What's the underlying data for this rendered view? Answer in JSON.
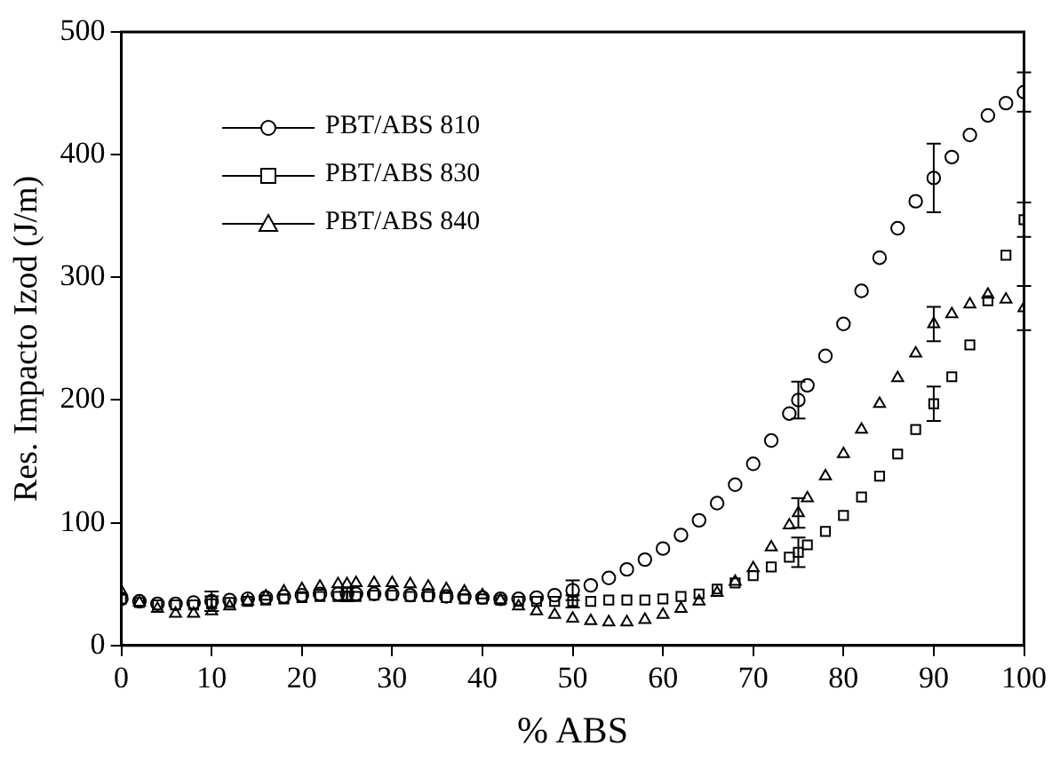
{
  "chart_data": {
    "type": "scatter",
    "xlabel": "% ABS",
    "ylabel": "Res. Impacto Izod (J/m)",
    "xlim": [
      0,
      100
    ],
    "ylim": [
      0,
      500
    ],
    "xticks": [
      0,
      10,
      20,
      30,
      40,
      50,
      60,
      70,
      80,
      90,
      100
    ],
    "yticks": [
      0,
      100,
      200,
      300,
      400,
      500
    ],
    "grid": false,
    "legend": "top left",
    "x": [
      0,
      2,
      4,
      6,
      8,
      10,
      12,
      14,
      16,
      18,
      20,
      22,
      24,
      25,
      26,
      28,
      30,
      32,
      34,
      36,
      38,
      40,
      42,
      44,
      46,
      48,
      50,
      52,
      54,
      56,
      58,
      60,
      62,
      64,
      66,
      68,
      70,
      72,
      74,
      75,
      76,
      78,
      80,
      82,
      84,
      86,
      88,
      90,
      92,
      94,
      96,
      98,
      100
    ],
    "series": [
      {
        "name": "PBT/ABS 810",
        "color": "#000000",
        "marker": "circle",
        "values": [
          38,
          36,
          34,
          34,
          35,
          36,
          37,
          38,
          39,
          40,
          41,
          42,
          42,
          42,
          42,
          42,
          42,
          41,
          41,
          40,
          40,
          39,
          38,
          38,
          39,
          41,
          45,
          49,
          55,
          62,
          70,
          79,
          90,
          102,
          116,
          131,
          148,
          167,
          189,
          200,
          212,
          236,
          262,
          289,
          316,
          340,
          362,
          381,
          398,
          416,
          432,
          442,
          451
        ],
        "errors": [
          null,
          null,
          null,
          null,
          null,
          8,
          null,
          null,
          null,
          null,
          null,
          null,
          null,
          5,
          null,
          null,
          null,
          null,
          null,
          null,
          null,
          null,
          null,
          null,
          null,
          null,
          8,
          null,
          null,
          null,
          null,
          null,
          null,
          null,
          null,
          null,
          null,
          null,
          null,
          15,
          null,
          null,
          null,
          null,
          null,
          null,
          null,
          28,
          null,
          null,
          null,
          null,
          16
        ]
      },
      {
        "name": "PBT/ABS 830",
        "color": "#000000",
        "marker": "square",
        "values": [
          38,
          35,
          33,
          33,
          33,
          34,
          35,
          36,
          37,
          38,
          39,
          40,
          40,
          40,
          40,
          41,
          41,
          40,
          40,
          39,
          38,
          38,
          37,
          36,
          36,
          36,
          36,
          36,
          37,
          37,
          37,
          38,
          40,
          42,
          46,
          51,
          57,
          64,
          72,
          76,
          82,
          93,
          106,
          121,
          138,
          156,
          176,
          197,
          219,
          245,
          281,
          318,
          347
        ],
        "errors": [
          null,
          null,
          null,
          null,
          null,
          6,
          null,
          null,
          null,
          null,
          null,
          null,
          null,
          4,
          null,
          null,
          null,
          null,
          null,
          null,
          null,
          null,
          null,
          null,
          null,
          null,
          5,
          null,
          null,
          null,
          null,
          null,
          null,
          null,
          null,
          null,
          null,
          null,
          null,
          12,
          null,
          null,
          null,
          null,
          null,
          null,
          null,
          14,
          null,
          null,
          null,
          null,
          14
        ]
      },
      {
        "name": "PBT/ABS 840",
        "color": "#000000",
        "marker": "triangle",
        "values": [
          44,
          35,
          30,
          26,
          26,
          28,
          32,
          36,
          40,
          44,
          46,
          48,
          50,
          50,
          51,
          51,
          51,
          50,
          48,
          46,
          44,
          41,
          37,
          32,
          28,
          25,
          22,
          20,
          19,
          19,
          21,
          25,
          30,
          36,
          43,
          52,
          63,
          80,
          98,
          108,
          120,
          138,
          156,
          176,
          197,
          218,
          238,
          262,
          270,
          278,
          286,
          282,
          275
        ],
        "errors": [
          null,
          null,
          null,
          null,
          null,
          null,
          null,
          null,
          null,
          null,
          null,
          null,
          null,
          null,
          null,
          null,
          null,
          null,
          null,
          null,
          null,
          null,
          null,
          null,
          null,
          null,
          null,
          null,
          null,
          null,
          null,
          null,
          null,
          null,
          null,
          null,
          null,
          null,
          null,
          12,
          null,
          null,
          null,
          null,
          null,
          null,
          null,
          14,
          null,
          null,
          null,
          null,
          18
        ]
      }
    ]
  }
}
